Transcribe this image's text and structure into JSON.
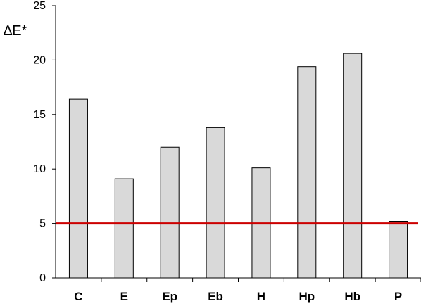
{
  "chart_data": {
    "type": "bar",
    "title": "",
    "xlabel": "",
    "ylabel": "∆E*",
    "categories": [
      "C",
      "E",
      "Ep",
      "Eb",
      "H",
      "Hp",
      "Hb",
      "P"
    ],
    "values": [
      16.4,
      9.1,
      12.0,
      13.8,
      10.1,
      19.4,
      20.6,
      5.2
    ],
    "ylim": [
      0,
      25
    ],
    "yticks": [
      0,
      5,
      10,
      15,
      20,
      25
    ],
    "grid": false,
    "threshold": {
      "value": 5,
      "color": "#cc0000"
    },
    "colors": {
      "bar_fill": "#d9d9d9",
      "bar_stroke": "#000000",
      "axis": "#000000"
    }
  }
}
